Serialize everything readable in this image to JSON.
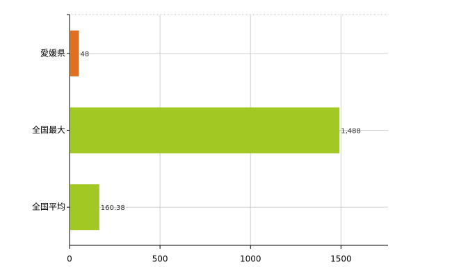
{
  "chart_data": {
    "type": "hbar",
    "categories": [
      "愛媛県",
      "全国最大",
      "全国平均"
    ],
    "values": [
      48,
      1488,
      160.38
    ],
    "value_labels": [
      "48",
      "1,488",
      "160.38"
    ],
    "colors": [
      "#e07020",
      "#a2c824",
      "#a2c824"
    ],
    "xlim": [
      0,
      1760
    ],
    "xticks": [
      0,
      500,
      1000,
      1500
    ],
    "grid": true
  }
}
